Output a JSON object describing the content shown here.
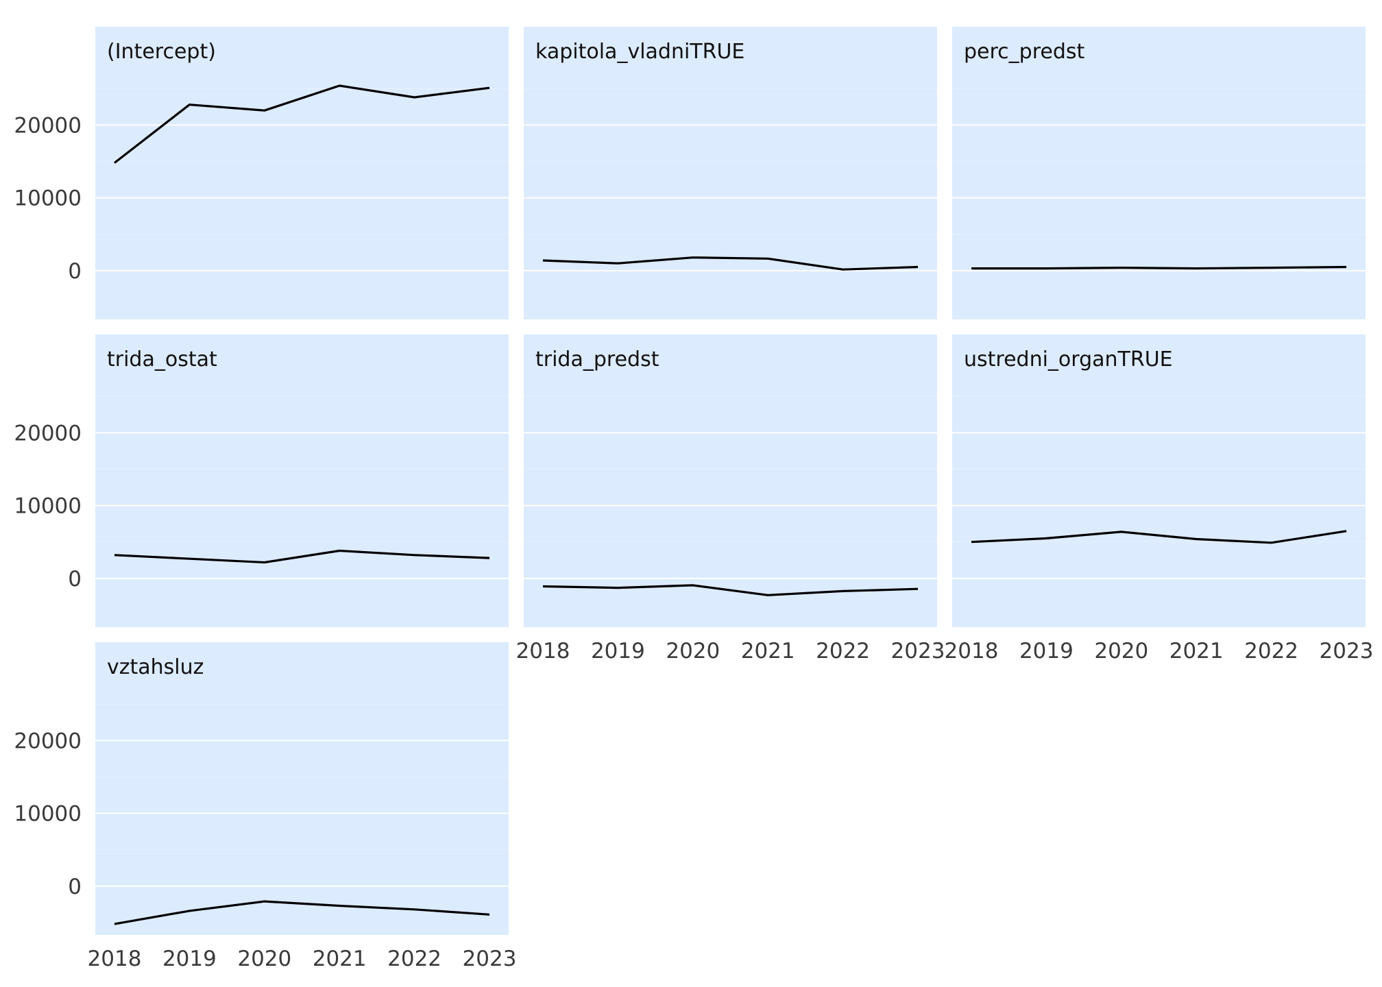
{
  "chart_data": {
    "type": "line",
    "facet_layout": "wrap",
    "facet_columns": 3,
    "shared_axes": true,
    "title": "",
    "xlabel": "",
    "ylabel": "",
    "x": [
      2018,
      2019,
      2020,
      2021,
      2022,
      2023
    ],
    "x_ticks": [
      "2018",
      "2019",
      "2020",
      "2021",
      "2022",
      "2023"
    ],
    "y_ticks": [
      0,
      10000,
      20000
    ],
    "y_tick_labels": [
      "0",
      "10000",
      "20000"
    ],
    "ylim": [
      -6700,
      33500
    ],
    "grid": true,
    "legend": "none",
    "colors": {
      "panel_background": "#dcebfe",
      "gridline": "#ffffff",
      "line": "#000000"
    },
    "panels": [
      {
        "name": "(Intercept)",
        "values": [
          14800,
          22800,
          22000,
          25400,
          23800,
          25100
        ]
      },
      {
        "name": "kapitola_vladniTRUE",
        "values": [
          1400,
          1000,
          1800,
          1650,
          150,
          500
        ]
      },
      {
        "name": "perc_predst",
        "values": [
          300,
          300,
          400,
          300,
          400,
          500
        ]
      },
      {
        "name": "trida_ostat",
        "values": [
          3200,
          2700,
          2200,
          3800,
          3200,
          2800
        ]
      },
      {
        "name": "trida_predst",
        "values": [
          -1100,
          -1300,
          -950,
          -2300,
          -1750,
          -1450
        ]
      },
      {
        "name": "ustredni_organTRUE",
        "values": [
          5000,
          5500,
          6400,
          5400,
          4900,
          6500
        ]
      },
      {
        "name": "vztahsluz",
        "values": [
          -5200,
          -3400,
          -2100,
          -2700,
          -3200,
          -3900
        ]
      }
    ]
  }
}
